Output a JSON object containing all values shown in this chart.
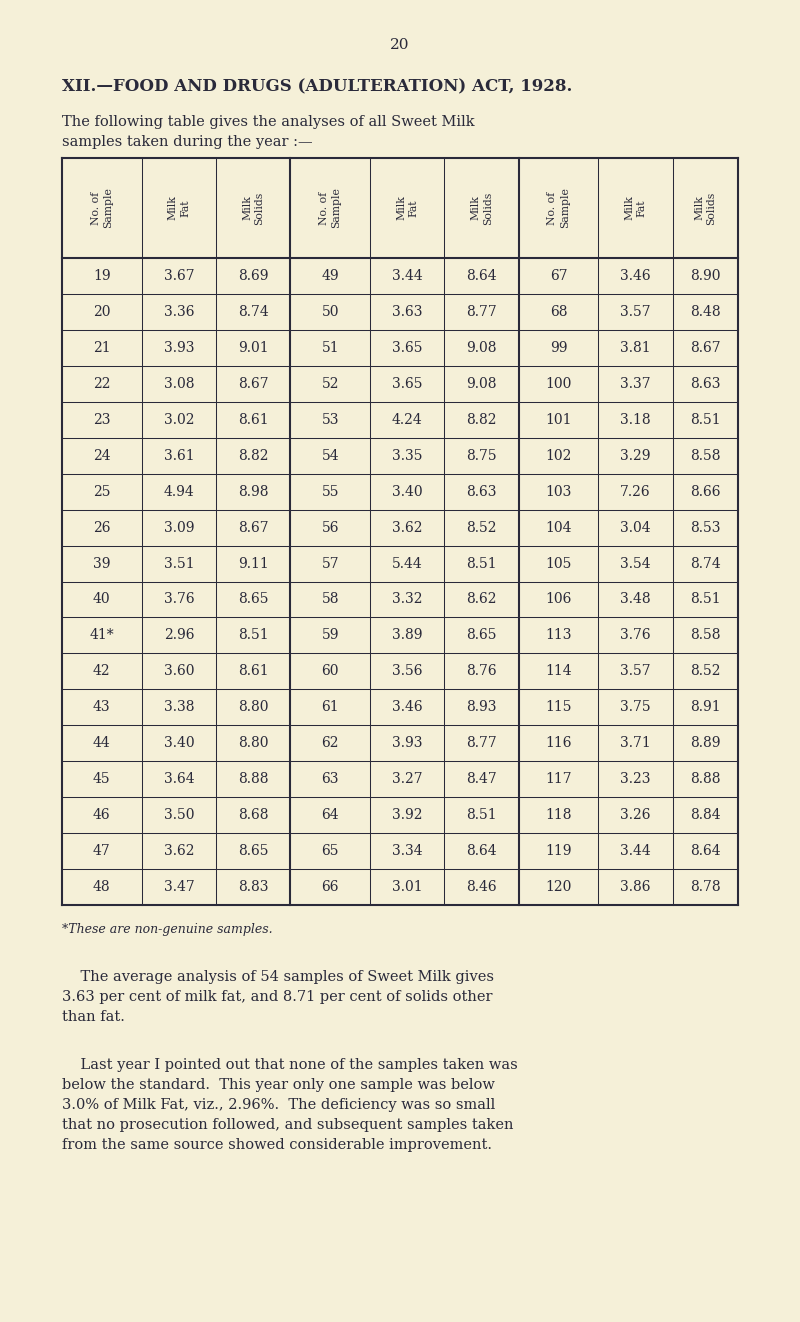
{
  "page_number": "20",
  "title": "XII.—FOOD AND DRUGS (ADULTERATION) ACT, 1928.",
  "intro_line1": "The following table gives the analyses of all Sweet Milk",
  "intro_line2": "samples taken during the year :—",
  "col_headers": [
    "No. of\nSample",
    "Milk\nFat",
    "Milk\nSolids",
    "No. of\nSample",
    "Milk\nFat",
    "Milk\nSolids",
    "No. of\nSample",
    "Milk\nFat",
    "Milk\nSolids"
  ],
  "rows": [
    [
      "19",
      "3.67",
      "8.69",
      "49",
      "3.44",
      "8.64",
      "67",
      "3.46",
      "8.90"
    ],
    [
      "20",
      "3.36",
      "8.74",
      "50",
      "3.63",
      "8.77",
      "68",
      "3.57",
      "8.48"
    ],
    [
      "21",
      "3.93",
      "9.01",
      "51",
      "3.65",
      "9.08",
      "99",
      "3.81",
      "8.67"
    ],
    [
      "22",
      "3.08",
      "8.67",
      "52",
      "3.65",
      "9.08",
      "100",
      "3.37",
      "8.63"
    ],
    [
      "23",
      "3.02",
      "8.61",
      "53",
      "4.24",
      "8.82",
      "101",
      "3.18",
      "8.51"
    ],
    [
      "24",
      "3.61",
      "8.82",
      "54",
      "3.35",
      "8.75",
      "102",
      "3.29",
      "8.58"
    ],
    [
      "25",
      "4.94",
      "8.98",
      "55",
      "3.40",
      "8.63",
      "103",
      "7.26",
      "8.66"
    ],
    [
      "26",
      "3.09",
      "8.67",
      "56",
      "3.62",
      "8.52",
      "104",
      "3.04",
      "8.53"
    ],
    [
      "39",
      "3.51",
      "9.11",
      "57",
      "5.44",
      "8.51",
      "105",
      "3.54",
      "8.74"
    ],
    [
      "40",
      "3.76",
      "8.65",
      "58",
      "3.32",
      "8.62",
      "106",
      "3.48",
      "8.51"
    ],
    [
      "41*",
      "2.96",
      "8.51",
      "59",
      "3.89",
      "8.65",
      "113",
      "3.76",
      "8.58"
    ],
    [
      "42",
      "3.60",
      "8.61",
      "60",
      "3.56",
      "8.76",
      "114",
      "3.57",
      "8.52"
    ],
    [
      "43",
      "3.38",
      "8.80",
      "61",
      "3.46",
      "8.93",
      "115",
      "3.75",
      "8.91"
    ],
    [
      "44",
      "3.40",
      "8.80",
      "62",
      "3.93",
      "8.77",
      "116",
      "3.71",
      "8.89"
    ],
    [
      "45",
      "3.64",
      "8.88",
      "63",
      "3.27",
      "8.47",
      "117",
      "3.23",
      "8.88"
    ],
    [
      "46",
      "3.50",
      "8.68",
      "64",
      "3.92",
      "8.51",
      "118",
      "3.26",
      "8.84"
    ],
    [
      "47",
      "3.62",
      "8.65",
      "65",
      "3.34",
      "8.64",
      "119",
      "3.44",
      "8.64"
    ],
    [
      "48",
      "3.47",
      "8.83",
      "66",
      "3.01",
      "8.46",
      "120",
      "3.86",
      "8.78"
    ]
  ],
  "footnote": "*These are non-genuine samples.",
  "para1_line1": "    The average analysis of 54 samples of Sweet Milk gives",
  "para1_line2": "3.63 per cent of milk fat, and 8.71 per cent of solids other",
  "para1_line3": "than fat.",
  "para2_line1": "    Last year I pointed out that none of the samples taken was",
  "para2_line2": "below the standard.  This year only one sample was below",
  "para2_line3": "3.0% of Milk Fat, viz., 2.96%.  The deficiency was so small",
  "para2_line4": "that no prosecution followed, and subsequent samples taken",
  "para2_line5": "from the same source showed considerable improvement.",
  "bg_color": "#f5f0d8",
  "text_color": "#2a2a3a",
  "table_line_color": "#2a2a3a"
}
